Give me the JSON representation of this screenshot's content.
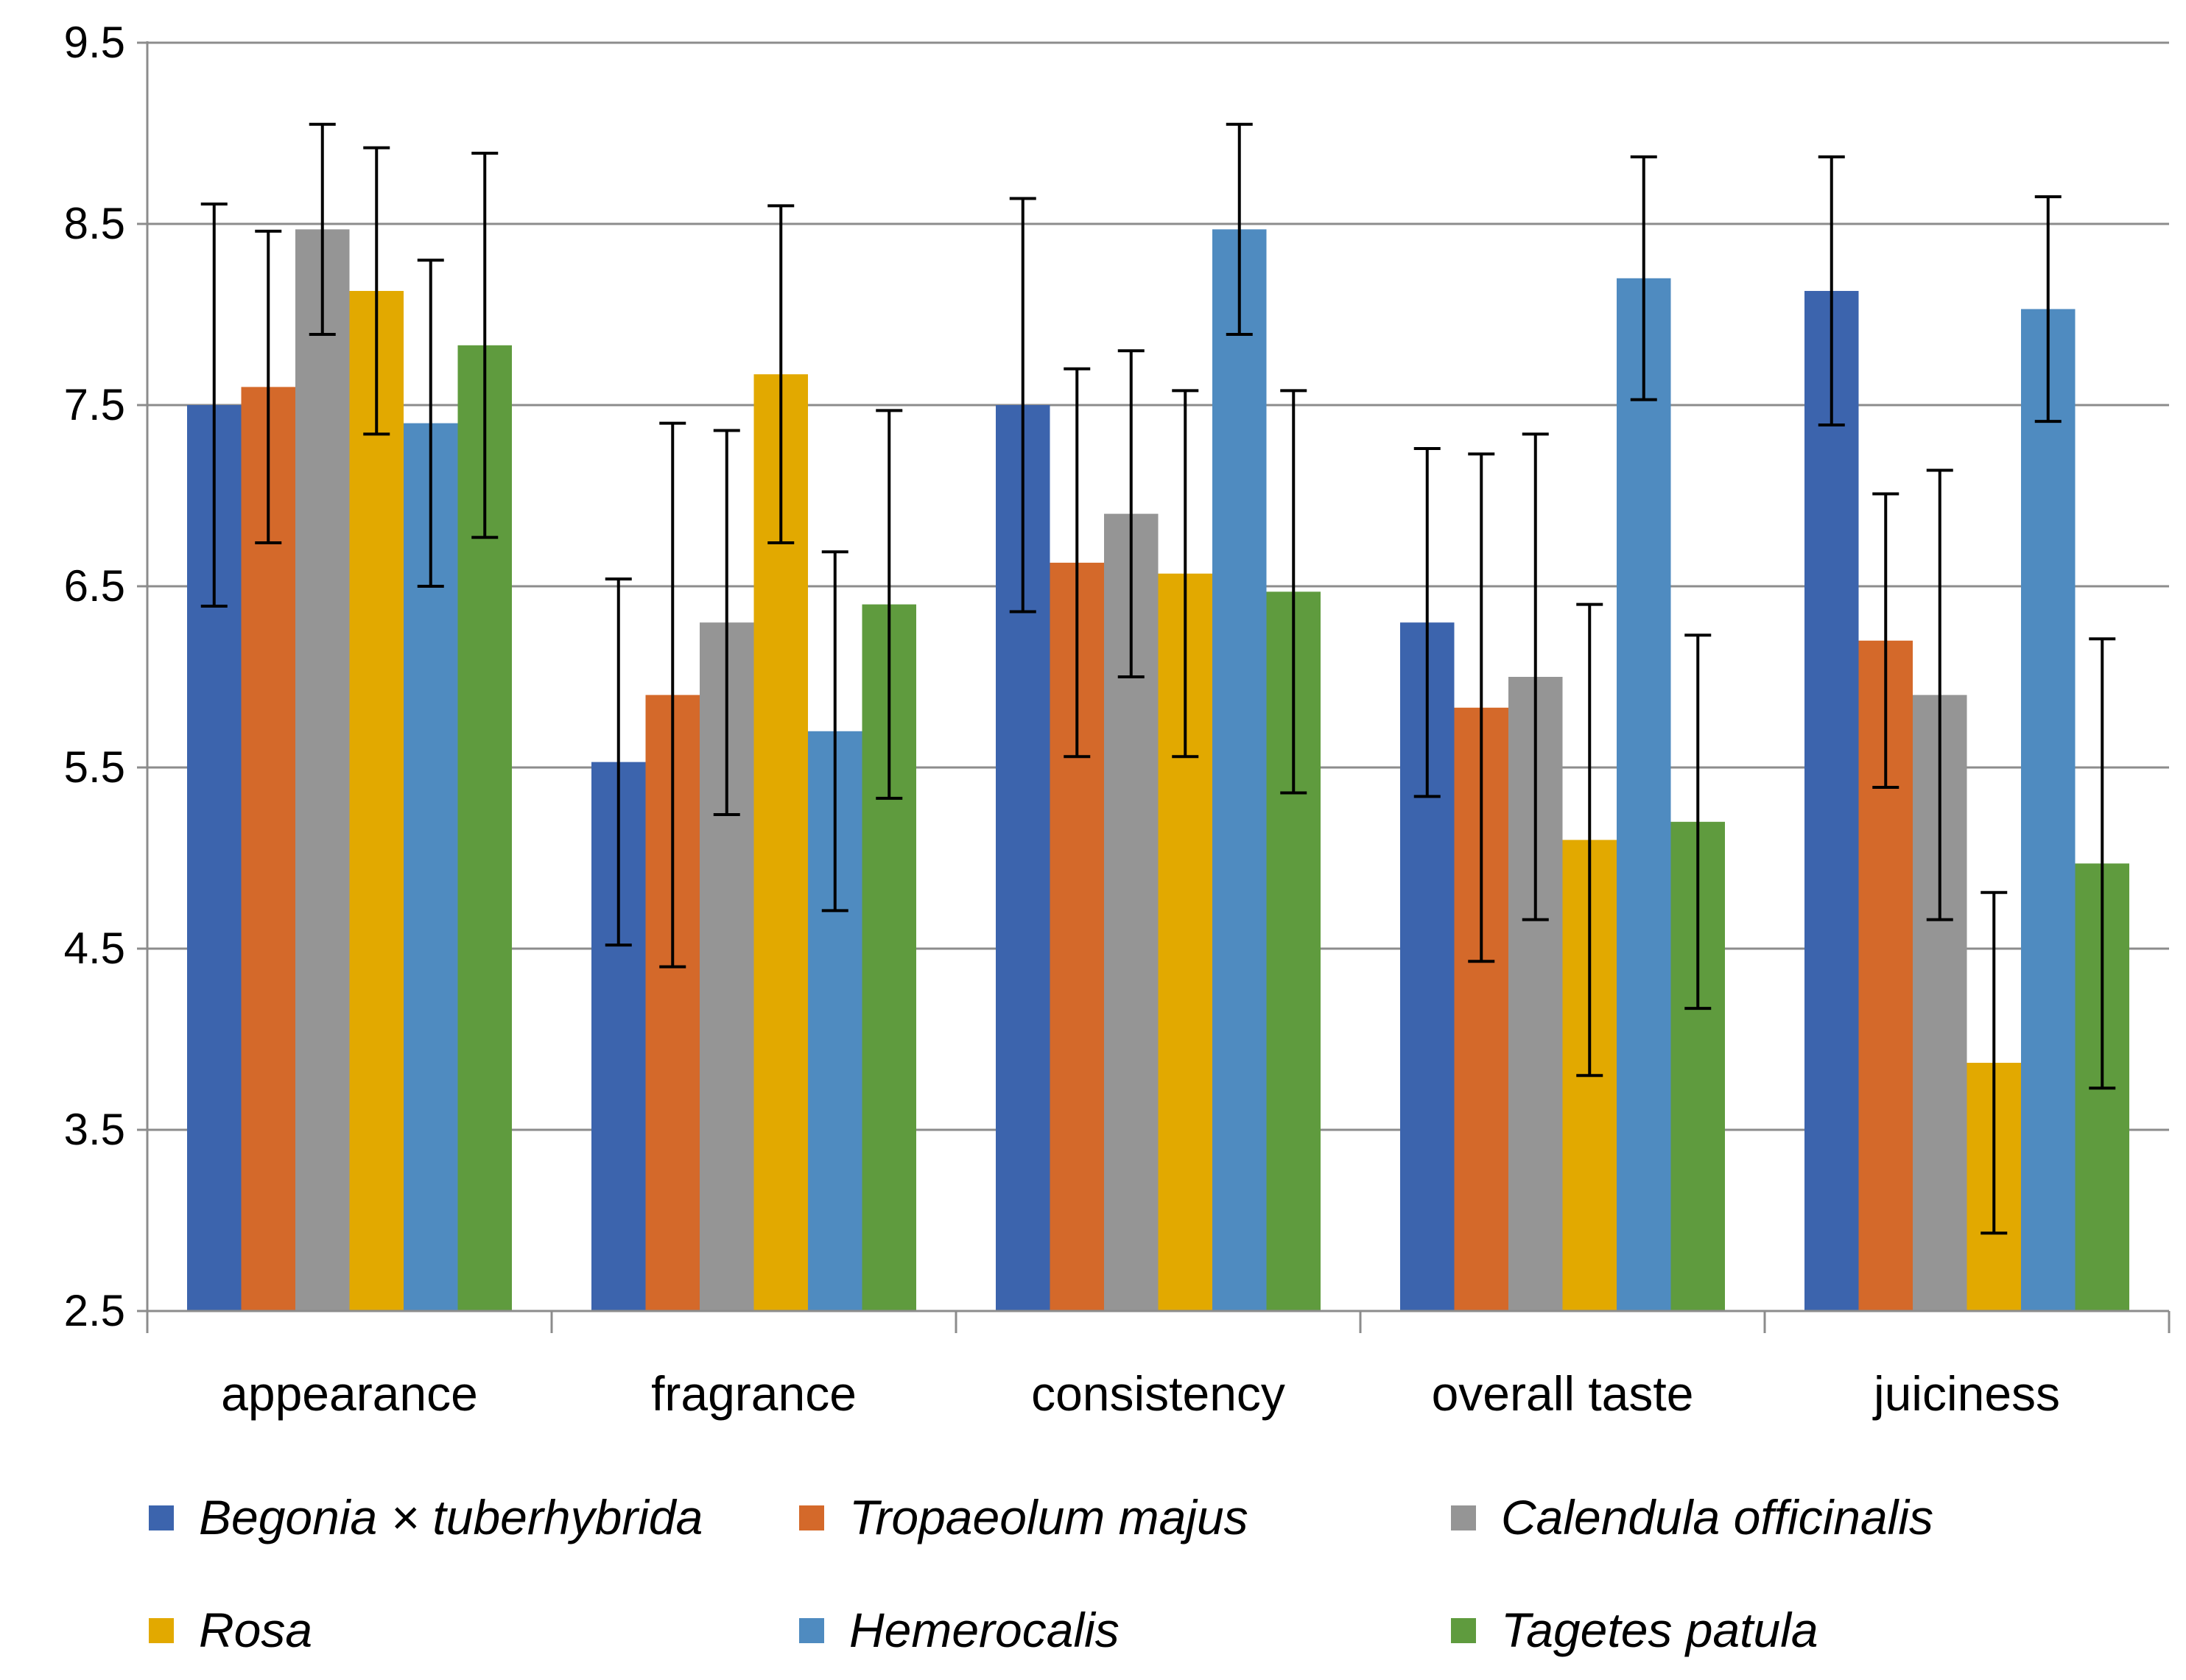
{
  "chart_data": {
    "type": "bar",
    "title": "",
    "xlabel": "",
    "ylabel": "",
    "ylim": [
      2.5,
      9.5
    ],
    "yticks": [
      "2.5",
      "3.5",
      "4.5",
      "5.5",
      "6.5",
      "7.5",
      "8.5",
      "9.5"
    ],
    "ytick_values": [
      2.5,
      3.5,
      4.5,
      5.5,
      6.5,
      7.5,
      8.5,
      9.5
    ],
    "grid": "horizontal",
    "legend_position": "bottom",
    "categories": [
      "appearance",
      "fragrance",
      "consistency",
      "overall taste",
      "juiciness"
    ],
    "series": [
      {
        "name": "Begonia × tuberhybrida",
        "color": "#3C64AD",
        "values": [
          7.5,
          5.53,
          7.5,
          6.3,
          8.13
        ],
        "errors": [
          1.11,
          1.01,
          1.14,
          0.96,
          0.74
        ]
      },
      {
        "name": "Tropaeolum majus",
        "color": "#D4692A",
        "values": [
          7.6,
          5.9,
          6.63,
          5.83,
          6.2
        ],
        "errors": [
          0.86,
          1.5,
          1.07,
          1.4,
          0.81
        ]
      },
      {
        "name": "Calendula officinalis",
        "color": "#959595",
        "values": [
          8.47,
          6.3,
          6.9,
          6.0,
          5.9
        ],
        "errors": [
          0.58,
          1.06,
          0.9,
          1.34,
          1.24
        ]
      },
      {
        "name": "Rosa",
        "color": "#E2A900",
        "values": [
          8.13,
          7.67,
          6.57,
          5.1,
          3.87
        ],
        "errors": [
          0.79,
          0.93,
          1.01,
          1.3,
          0.94
        ]
      },
      {
        "name": "Hemerocalis",
        "color": "#4F8BC0",
        "values": [
          7.4,
          5.7,
          8.47,
          8.2,
          8.03
        ],
        "errors": [
          0.9,
          0.99,
          0.58,
          0.67,
          0.62
        ]
      },
      {
        "name": "Tagetes patula",
        "color": "#5F9B3E",
        "values": [
          7.83,
          6.4,
          6.47,
          5.2,
          4.97
        ],
        "errors": [
          1.06,
          1.07,
          1.11,
          1.03,
          1.24
        ]
      }
    ]
  }
}
